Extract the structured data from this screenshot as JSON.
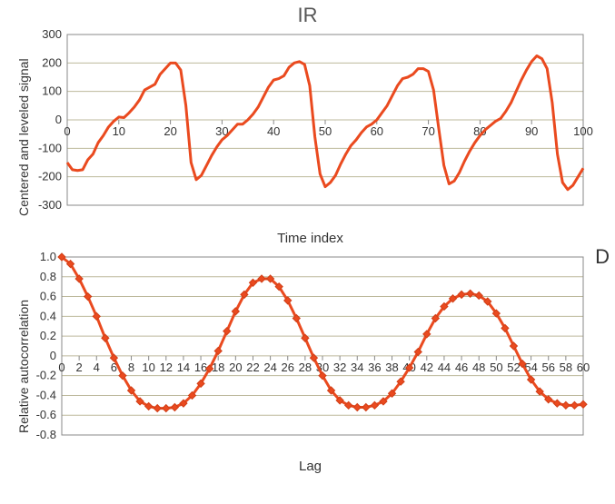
{
  "title": "IR",
  "panel_letter": "D",
  "colors": {
    "line": "#ea4a1f",
    "marker_fill": "#ea4a1f",
    "marker_stroke": "#d03e16",
    "grid": "#bdb99c",
    "axis": "#888888",
    "bg": "#ffffff",
    "text": "#333333"
  },
  "chart1": {
    "type": "line",
    "ylabel": "Centered and leveled signal",
    "xlabel": "Time index",
    "xlim": [
      0,
      100
    ],
    "ylim": [
      -300,
      300
    ],
    "xtick_step": 10,
    "ytick_step": 100,
    "xtick_origin_label": "0",
    "line_width": 3,
    "data": [
      [
        0,
        -150
      ],
      [
        1,
        -175
      ],
      [
        2,
        -178
      ],
      [
        3,
        -175
      ],
      [
        4,
        -140
      ],
      [
        5,
        -120
      ],
      [
        6,
        -80
      ],
      [
        7,
        -55
      ],
      [
        8,
        -25
      ],
      [
        9,
        -5
      ],
      [
        10,
        10
      ],
      [
        11,
        8
      ],
      [
        12,
        25
      ],
      [
        13,
        45
      ],
      [
        14,
        70
      ],
      [
        15,
        105
      ],
      [
        16,
        115
      ],
      [
        17,
        125
      ],
      [
        18,
        160
      ],
      [
        19,
        180
      ],
      [
        20,
        200
      ],
      [
        21,
        200
      ],
      [
        22,
        175
      ],
      [
        23,
        50
      ],
      [
        24,
        -150
      ],
      [
        25,
        -210
      ],
      [
        26,
        -195
      ],
      [
        27,
        -160
      ],
      [
        28,
        -125
      ],
      [
        29,
        -95
      ],
      [
        30,
        -70
      ],
      [
        31,
        -55
      ],
      [
        32,
        -35
      ],
      [
        33,
        -15
      ],
      [
        34,
        -15
      ],
      [
        35,
        0
      ],
      [
        36,
        20
      ],
      [
        37,
        45
      ],
      [
        38,
        80
      ],
      [
        39,
        115
      ],
      [
        40,
        140
      ],
      [
        41,
        145
      ],
      [
        42,
        155
      ],
      [
        43,
        185
      ],
      [
        44,
        200
      ],
      [
        45,
        205
      ],
      [
        46,
        195
      ],
      [
        47,
        120
      ],
      [
        48,
        -60
      ],
      [
        49,
        -190
      ],
      [
        50,
        -235
      ],
      [
        51,
        -220
      ],
      [
        52,
        -195
      ],
      [
        53,
        -155
      ],
      [
        54,
        -120
      ],
      [
        55,
        -90
      ],
      [
        56,
        -70
      ],
      [
        57,
        -45
      ],
      [
        58,
        -25
      ],
      [
        59,
        -15
      ],
      [
        60,
        0
      ],
      [
        61,
        25
      ],
      [
        62,
        50
      ],
      [
        63,
        85
      ],
      [
        64,
        120
      ],
      [
        65,
        145
      ],
      [
        66,
        150
      ],
      [
        67,
        160
      ],
      [
        68,
        180
      ],
      [
        69,
        180
      ],
      [
        70,
        170
      ],
      [
        71,
        105
      ],
      [
        72,
        -30
      ],
      [
        73,
        -160
      ],
      [
        74,
        -225
      ],
      [
        75,
        -215
      ],
      [
        76,
        -185
      ],
      [
        77,
        -145
      ],
      [
        78,
        -110
      ],
      [
        79,
        -80
      ],
      [
        80,
        -55
      ],
      [
        81,
        -35
      ],
      [
        82,
        -20
      ],
      [
        83,
        -5
      ],
      [
        84,
        5
      ],
      [
        85,
        30
      ],
      [
        86,
        60
      ],
      [
        87,
        100
      ],
      [
        88,
        140
      ],
      [
        89,
        175
      ],
      [
        90,
        205
      ],
      [
        91,
        225
      ],
      [
        92,
        215
      ],
      [
        93,
        180
      ],
      [
        94,
        60
      ],
      [
        95,
        -120
      ],
      [
        96,
        -220
      ],
      [
        97,
        -245
      ],
      [
        98,
        -230
      ],
      [
        99,
        -200
      ],
      [
        100,
        -170
      ]
    ]
  },
  "chart2": {
    "type": "line-marker",
    "ylabel": "Relative autocorrelation",
    "xlabel": "Lag",
    "xlim": [
      0,
      60
    ],
    "ylim": [
      -0.8,
      1.0
    ],
    "xtick_step": 2,
    "ytick_step": 0.2,
    "line_width": 3,
    "marker": "diamond",
    "marker_size": 8,
    "data": [
      [
        0,
        1.0
      ],
      [
        1,
        0.93
      ],
      [
        2,
        0.78
      ],
      [
        3,
        0.6
      ],
      [
        4,
        0.4
      ],
      [
        5,
        0.18
      ],
      [
        6,
        -0.02
      ],
      [
        7,
        -0.2
      ],
      [
        8,
        -0.35
      ],
      [
        9,
        -0.46
      ],
      [
        10,
        -0.51
      ],
      [
        11,
        -0.53
      ],
      [
        12,
        -0.53
      ],
      [
        13,
        -0.52
      ],
      [
        14,
        -0.48
      ],
      [
        15,
        -0.4
      ],
      [
        16,
        -0.28
      ],
      [
        17,
        -0.13
      ],
      [
        18,
        0.05
      ],
      [
        19,
        0.25
      ],
      [
        20,
        0.45
      ],
      [
        21,
        0.62
      ],
      [
        22,
        0.74
      ],
      [
        23,
        0.78
      ],
      [
        24,
        0.78
      ],
      [
        25,
        0.7
      ],
      [
        26,
        0.56
      ],
      [
        27,
        0.38
      ],
      [
        28,
        0.18
      ],
      [
        29,
        -0.02
      ],
      [
        30,
        -0.2
      ],
      [
        31,
        -0.35
      ],
      [
        32,
        -0.45
      ],
      [
        33,
        -0.5
      ],
      [
        34,
        -0.52
      ],
      [
        35,
        -0.52
      ],
      [
        36,
        -0.5
      ],
      [
        37,
        -0.46
      ],
      [
        38,
        -0.38
      ],
      [
        39,
        -0.26
      ],
      [
        40,
        -0.12
      ],
      [
        41,
        0.04
      ],
      [
        42,
        0.22
      ],
      [
        43,
        0.38
      ],
      [
        44,
        0.5
      ],
      [
        45,
        0.58
      ],
      [
        46,
        0.62
      ],
      [
        47,
        0.63
      ],
      [
        48,
        0.61
      ],
      [
        49,
        0.55
      ],
      [
        50,
        0.43
      ],
      [
        51,
        0.28
      ],
      [
        52,
        0.1
      ],
      [
        53,
        -0.08
      ],
      [
        54,
        -0.24
      ],
      [
        55,
        -0.36
      ],
      [
        56,
        -0.44
      ],
      [
        57,
        -0.48
      ],
      [
        58,
        -0.5
      ],
      [
        59,
        -0.5
      ],
      [
        60,
        -0.49
      ]
    ]
  }
}
